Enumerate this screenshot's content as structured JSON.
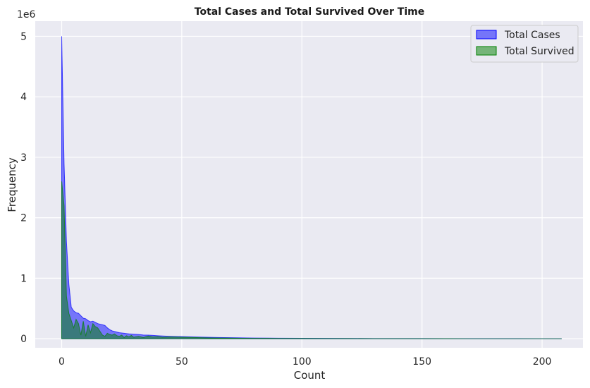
{
  "chart_data": {
    "type": "area",
    "title": "Total Cases and Total Survived Over Time",
    "xlabel": "Count",
    "ylabel": "Frequency",
    "y_offset_label": "1e6",
    "xlim": [
      -11,
      217
    ],
    "ylim": [
      -150000,
      5250000
    ],
    "x_ticks": [
      0,
      50,
      100,
      150,
      200
    ],
    "x_tick_labels": [
      "0",
      "50",
      "100",
      "150",
      "200"
    ],
    "y_ticks": [
      0,
      1000000,
      2000000,
      3000000,
      4000000,
      5000000
    ],
    "y_tick_labels": [
      "0",
      "1",
      "2",
      "3",
      "4",
      "5"
    ],
    "grid": true,
    "legend_position": "top-right",
    "series": [
      {
        "name": "Total Cases",
        "color": "#0000ff",
        "fill_opacity": 0.5,
        "x": [
          0,
          1,
          2,
          3,
          4,
          5,
          6,
          7,
          8,
          9,
          10,
          11,
          12,
          13,
          14,
          15,
          16,
          17,
          18,
          19,
          20,
          21,
          22,
          23,
          24,
          25,
          26,
          27,
          28,
          29,
          30,
          32,
          34,
          36,
          38,
          40,
          42,
          45,
          50,
          55,
          60,
          65,
          70,
          75,
          80,
          90,
          100,
          110,
          120,
          130,
          140,
          150,
          160,
          170,
          180,
          190,
          200,
          208
        ],
        "y": [
          5000000,
          2900000,
          1600000,
          900000,
          520000,
          460000,
          430000,
          420000,
          380000,
          340000,
          330000,
          300000,
          280000,
          290000,
          270000,
          250000,
          240000,
          230000,
          220000,
          180000,
          150000,
          130000,
          120000,
          110000,
          100000,
          95000,
          90000,
          85000,
          80000,
          78000,
          75000,
          70000,
          62000,
          60000,
          55000,
          50000,
          45000,
          40000,
          35000,
          30000,
          25000,
          20000,
          18000,
          15000,
          12000,
          9000,
          7000,
          5500,
          4500,
          3500,
          3000,
          2500,
          2000,
          1500,
          1200,
          1000,
          800,
          600
        ]
      },
      {
        "name": "Total Survived",
        "color": "#008000",
        "fill_opacity": 0.5,
        "x": [
          0,
          1,
          2,
          3,
          4,
          5,
          6,
          7,
          8,
          9,
          10,
          11,
          12,
          13,
          14,
          15,
          16,
          17,
          18,
          19,
          20,
          21,
          22,
          23,
          24,
          25,
          26,
          27,
          28,
          29,
          30,
          32,
          34,
          36,
          38,
          40,
          42,
          45,
          50,
          55,
          60,
          65,
          70,
          75,
          80,
          90,
          100,
          110,
          120,
          130,
          140,
          150,
          160,
          170,
          180,
          190,
          200,
          208
        ],
        "y": [
          2600000,
          2200000,
          700000,
          420000,
          300000,
          180000,
          320000,
          250000,
          60000,
          290000,
          40000,
          230000,
          100000,
          250000,
          200000,
          180000,
          120000,
          60000,
          40000,
          90000,
          70000,
          60000,
          80000,
          50000,
          40000,
          60000,
          20000,
          50000,
          30000,
          55000,
          25000,
          40000,
          20000,
          45000,
          30000,
          35000,
          25000,
          30000,
          25000,
          20000,
          15000,
          12000,
          10000,
          8000,
          6000,
          5000,
          4000,
          3000,
          2500,
          2000,
          1500,
          1200,
          1000,
          800,
          600,
          500,
          400,
          300
        ]
      }
    ]
  }
}
